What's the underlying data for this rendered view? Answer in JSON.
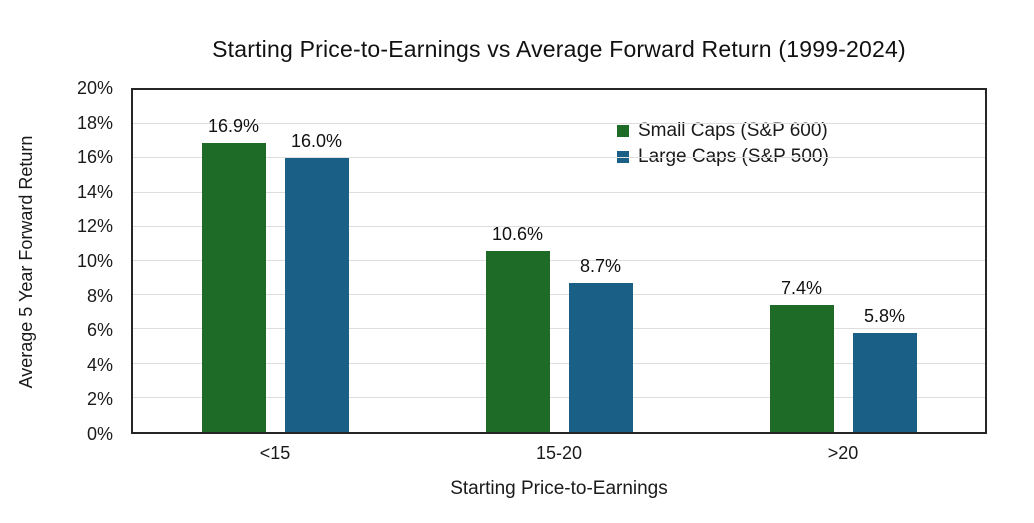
{
  "chart_data": {
    "type": "bar",
    "title": "Starting Price-to-Earnings vs Average Forward Return (1999-2024)",
    "xlabel": "Starting Price-to-Earnings",
    "ylabel": "Average 5 Year Forward Return",
    "categories": [
      "<15",
      "15-20",
      ">20"
    ],
    "series": [
      {
        "name": "Small Caps (S&P 600)",
        "color": "#1e6b28",
        "values": [
          16.9,
          10.6,
          7.4
        ],
        "labels": [
          "16.9%",
          "10.6%",
          "7.4%"
        ]
      },
      {
        "name": "Large Caps (S&P 500)",
        "color": "#1a6086",
        "values": [
          16.0,
          8.7,
          5.8
        ],
        "labels": [
          "16.0%",
          "8.7%",
          "5.8%"
        ]
      }
    ],
    "ylim": [
      0,
      20
    ],
    "y_tick_step": 2,
    "y_ticks": [
      "0%",
      "2%",
      "4%",
      "6%",
      "8%",
      "10%",
      "12%",
      "14%",
      "16%",
      "18%",
      "20%"
    ],
    "grid": "horizontal",
    "legend_position": "top-right",
    "axis_color": "#262626",
    "gridline_color": "#dedede",
    "text_color": "#1a1a1a"
  }
}
